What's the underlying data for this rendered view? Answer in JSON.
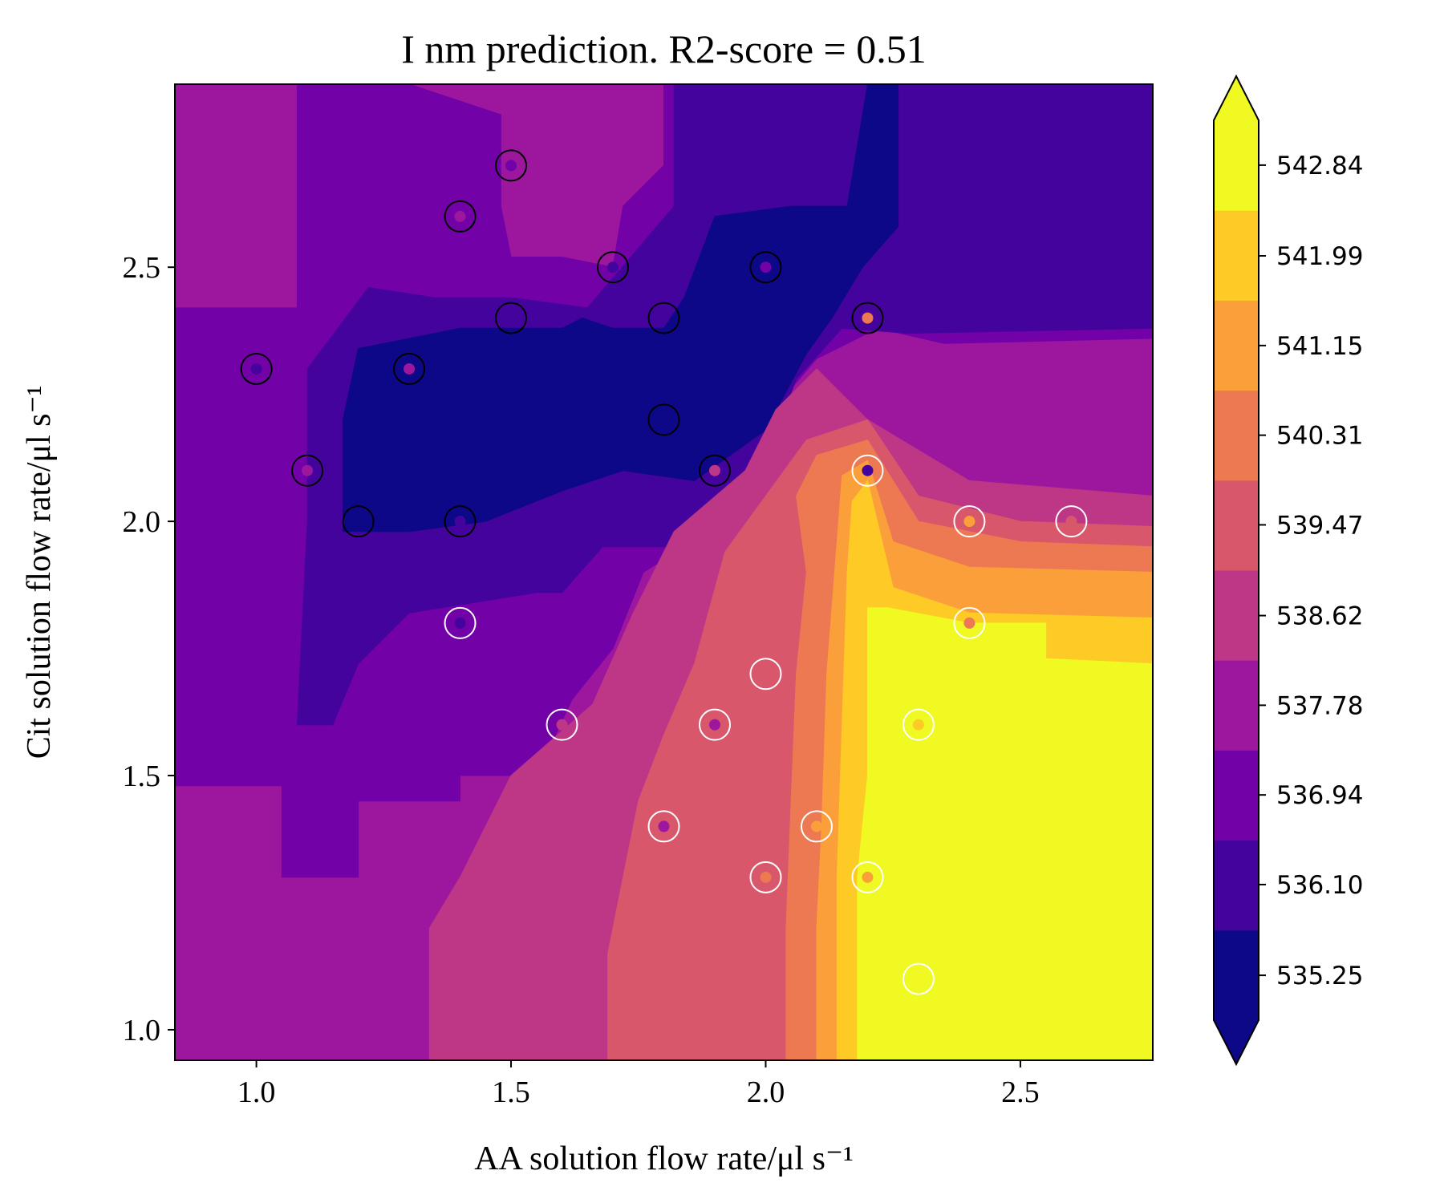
{
  "chart_data": {
    "type": "heatmap",
    "subtype": "filled-contour with scatter overlay and colorbar",
    "title": "I nm prediction. R2-score = 0.51",
    "xlabel": "AA solution flow rate/μl s⁻¹",
    "ylabel": "Cit solution flow rate/μl s⁻¹",
    "xlim": [
      0.84,
      2.76
    ],
    "ylim": [
      0.94,
      2.86
    ],
    "x_ticks": [
      1.0,
      1.5,
      2.0,
      2.5
    ],
    "x_tick_labels": [
      "1.0",
      "1.5",
      "2.0",
      "2.5"
    ],
    "y_ticks": [
      1.0,
      1.5,
      2.0,
      2.5
    ],
    "y_tick_labels": [
      "1.0",
      "1.5",
      "2.0",
      "2.5"
    ],
    "grid": false,
    "colormap": "plasma",
    "colorbar": {
      "levels": [
        534.83,
        535.67,
        536.52,
        537.36,
        538.2,
        539.04,
        539.89,
        540.73,
        541.57,
        542.41,
        543.26
      ],
      "tick_values": [
        535.25,
        536.1,
        536.94,
        537.78,
        538.62,
        539.47,
        540.31,
        541.15,
        541.99,
        542.84
      ],
      "tick_labels": [
        "535.25",
        "536.10",
        "536.94",
        "537.78",
        "538.62",
        "539.47",
        "540.31",
        "541.15",
        "541.99",
        "542.84"
      ],
      "band_colors": [
        "#0d0887",
        "#45039e",
        "#7201a8",
        "#9c179e",
        "#bd3786",
        "#d8576b",
        "#ed7953",
        "#fb9f3a",
        "#fdca26",
        "#f0f921"
      ],
      "extend": "both"
    },
    "contour_regions": [
      {
        "level": 3,
        "color": "#9c179e",
        "polygon": [
          [
            0.84,
            0.94
          ],
          [
            2.76,
            0.94
          ],
          [
            2.76,
            2.86
          ],
          [
            0.84,
            2.86
          ]
        ]
      },
      {
        "level": 2,
        "color": "#7201a8",
        "polygon": [
          [
            0.84,
            1.48
          ],
          [
            1.05,
            1.48
          ],
          [
            1.05,
            1.3
          ],
          [
            1.2,
            1.3
          ],
          [
            1.2,
            1.45
          ],
          [
            1.4,
            1.45
          ],
          [
            1.4,
            1.5
          ],
          [
            1.55,
            1.5
          ],
          [
            1.62,
            1.65
          ],
          [
            1.7,
            1.75
          ],
          [
            1.76,
            1.9
          ],
          [
            1.92,
            2.0
          ],
          [
            2.04,
            2.25
          ],
          [
            2.1,
            2.32
          ],
          [
            2.22,
            2.38
          ],
          [
            2.35,
            2.35
          ],
          [
            2.76,
            2.36
          ],
          [
            2.76,
            2.86
          ],
          [
            2.2,
            2.86
          ],
          [
            1.8,
            2.86
          ],
          [
            1.8,
            2.7
          ],
          [
            1.72,
            2.62
          ],
          [
            1.7,
            2.5
          ],
          [
            1.6,
            2.52
          ],
          [
            1.5,
            2.52
          ],
          [
            1.48,
            2.62
          ],
          [
            1.48,
            2.8
          ],
          [
            1.3,
            2.86
          ],
          [
            1.08,
            2.86
          ],
          [
            1.08,
            2.42
          ],
          [
            0.84,
            2.42
          ]
        ]
      },
      {
        "level": 1,
        "color": "#45039e",
        "polygon": [
          [
            1.08,
            1.6
          ],
          [
            1.15,
            1.6
          ],
          [
            1.2,
            1.72
          ],
          [
            1.3,
            1.82
          ],
          [
            1.55,
            1.86
          ],
          [
            1.6,
            1.86
          ],
          [
            1.68,
            1.95
          ],
          [
            1.82,
            1.95
          ],
          [
            1.92,
            2.02
          ],
          [
            2.0,
            2.12
          ],
          [
            2.06,
            2.28
          ],
          [
            2.15,
            2.38
          ],
          [
            2.28,
            2.37
          ],
          [
            2.76,
            2.38
          ],
          [
            2.76,
            2.86
          ],
          [
            2.2,
            2.86
          ],
          [
            1.82,
            2.86
          ],
          [
            1.82,
            2.62
          ],
          [
            1.65,
            2.42
          ],
          [
            1.5,
            2.44
          ],
          [
            1.35,
            2.44
          ],
          [
            1.22,
            2.46
          ],
          [
            1.1,
            2.3
          ],
          [
            1.1,
            2.0
          ]
        ]
      },
      {
        "level": 0,
        "color": "#0d0887",
        "polygon": [
          [
            1.17,
            1.98
          ],
          [
            1.3,
            1.98
          ],
          [
            1.45,
            2.0
          ],
          [
            1.6,
            2.06
          ],
          [
            1.72,
            2.1
          ],
          [
            1.86,
            2.08
          ],
          [
            2.0,
            2.18
          ],
          [
            2.08,
            2.33
          ],
          [
            2.13,
            2.4
          ],
          [
            2.19,
            2.5
          ],
          [
            2.26,
            2.58
          ],
          [
            2.26,
            2.86
          ],
          [
            2.2,
            2.86
          ],
          [
            2.16,
            2.62
          ],
          [
            2.05,
            2.62
          ],
          [
            1.9,
            2.6
          ],
          [
            1.84,
            2.44
          ],
          [
            1.8,
            2.38
          ],
          [
            1.7,
            2.38
          ],
          [
            1.64,
            2.4
          ],
          [
            1.6,
            2.38
          ],
          [
            1.4,
            2.38
          ],
          [
            1.2,
            2.34
          ],
          [
            1.17,
            2.2
          ]
        ]
      },
      {
        "level": 4,
        "color": "#bd3786",
        "polygon": [
          [
            1.34,
            0.94
          ],
          [
            2.76,
            0.94
          ],
          [
            2.76,
            2.05
          ],
          [
            2.4,
            2.08
          ],
          [
            2.2,
            2.2
          ],
          [
            2.1,
            2.3
          ],
          [
            2.02,
            2.22
          ],
          [
            1.96,
            2.1
          ],
          [
            1.82,
            1.98
          ],
          [
            1.74,
            1.82
          ],
          [
            1.66,
            1.64
          ],
          [
            1.5,
            1.5
          ],
          [
            1.4,
            1.3
          ],
          [
            1.34,
            1.2
          ]
        ]
      },
      {
        "level": 5,
        "color": "#d8576b",
        "polygon": [
          [
            1.69,
            0.94
          ],
          [
            2.76,
            0.94
          ],
          [
            2.76,
            1.99
          ],
          [
            2.5,
            2.0
          ],
          [
            2.3,
            2.05
          ],
          [
            2.2,
            2.2
          ],
          [
            2.08,
            2.16
          ],
          [
            2.0,
            2.05
          ],
          [
            1.92,
            1.94
          ],
          [
            1.86,
            1.72
          ],
          [
            1.8,
            1.58
          ],
          [
            1.75,
            1.45
          ],
          [
            1.72,
            1.3
          ],
          [
            1.69,
            1.15
          ]
        ]
      },
      {
        "level": 6,
        "color": "#ed7953",
        "polygon": [
          [
            2.04,
            0.94
          ],
          [
            2.76,
            0.94
          ],
          [
            2.76,
            1.95
          ],
          [
            2.5,
            1.96
          ],
          [
            2.3,
            2.0
          ],
          [
            2.2,
            2.16
          ],
          [
            2.1,
            2.13
          ],
          [
            2.06,
            2.05
          ],
          [
            2.08,
            1.9
          ],
          [
            2.06,
            1.7
          ],
          [
            2.05,
            1.45
          ],
          [
            2.04,
            1.2
          ]
        ]
      },
      {
        "level": 7,
        "color": "#fb9f3a",
        "polygon": [
          [
            2.1,
            0.94
          ],
          [
            2.76,
            0.94
          ],
          [
            2.76,
            1.9
          ],
          [
            2.4,
            1.91
          ],
          [
            2.25,
            1.96
          ],
          [
            2.2,
            2.12
          ],
          [
            2.15,
            2.09
          ],
          [
            2.14,
            1.96
          ],
          [
            2.12,
            1.7
          ],
          [
            2.11,
            1.4
          ],
          [
            2.1,
            1.2
          ]
        ]
      },
      {
        "level": 8,
        "color": "#fdca26",
        "polygon": [
          [
            2.14,
            0.94
          ],
          [
            2.76,
            0.94
          ],
          [
            2.76,
            1.81
          ],
          [
            2.4,
            1.82
          ],
          [
            2.25,
            1.87
          ],
          [
            2.2,
            2.08
          ],
          [
            2.17,
            2.04
          ],
          [
            2.16,
            1.9
          ],
          [
            2.15,
            1.6
          ],
          [
            2.14,
            1.3
          ]
        ]
      },
      {
        "level": 9,
        "color": "#f0f921",
        "polygon": [
          [
            2.18,
            0.94
          ],
          [
            2.76,
            0.94
          ],
          [
            2.76,
            1.72
          ],
          [
            2.55,
            1.73
          ],
          [
            2.55,
            1.8
          ],
          [
            2.4,
            1.8
          ],
          [
            2.24,
            1.83
          ],
          [
            2.2,
            1.83
          ],
          [
            2.2,
            1.5
          ],
          [
            2.18,
            1.3
          ]
        ]
      }
    ],
    "scatter_points": [
      {
        "x": 1.5,
        "y": 2.7,
        "value_color": "#7201a8",
        "ring": "black"
      },
      {
        "x": 1.4,
        "y": 2.6,
        "value_color": "#9c179e",
        "ring": "black"
      },
      {
        "x": 1.7,
        "y": 2.5,
        "value_color": "#45039e",
        "ring": "black"
      },
      {
        "x": 2.0,
        "y": 2.5,
        "value_color": "#7201a8",
        "ring": "black"
      },
      {
        "x": 1.5,
        "y": 2.4,
        "value_color": "#45039e",
        "ring": "black"
      },
      {
        "x": 1.8,
        "y": 2.4,
        "value_color": "#45039e",
        "ring": "black"
      },
      {
        "x": 2.2,
        "y": 2.4,
        "value_color": "#ed7953",
        "ring": "black"
      },
      {
        "x": 1.0,
        "y": 2.3,
        "value_color": "#45039e",
        "ring": "black"
      },
      {
        "x": 1.3,
        "y": 2.3,
        "value_color": "#9c179e",
        "ring": "black"
      },
      {
        "x": 1.8,
        "y": 2.2,
        "value_color": "#0d0887",
        "ring": "black"
      },
      {
        "x": 1.1,
        "y": 2.1,
        "value_color": "#9c179e",
        "ring": "black"
      },
      {
        "x": 1.9,
        "y": 2.1,
        "value_color": "#bd3786",
        "ring": "black"
      },
      {
        "x": 2.2,
        "y": 2.1,
        "value_color": "#45039e",
        "ring": "white"
      },
      {
        "x": 1.2,
        "y": 2.0,
        "value_color": "#0d0887",
        "ring": "black"
      },
      {
        "x": 1.4,
        "y": 2.0,
        "value_color": "#45039e",
        "ring": "black"
      },
      {
        "x": 2.4,
        "y": 2.0,
        "value_color": "#fb9f3a",
        "ring": "white"
      },
      {
        "x": 2.6,
        "y": 2.0,
        "value_color": "#d8576b",
        "ring": "white"
      },
      {
        "x": 1.4,
        "y": 1.8,
        "value_color": "#45039e",
        "ring": "white"
      },
      {
        "x": 2.4,
        "y": 1.8,
        "value_color": "#ed7953",
        "ring": "white"
      },
      {
        "x": 2.0,
        "y": 1.7,
        "value_color": "#d8576b",
        "ring": "white"
      },
      {
        "x": 1.6,
        "y": 1.6,
        "value_color": "#bd3786",
        "ring": "white"
      },
      {
        "x": 1.9,
        "y": 1.6,
        "value_color": "#9c179e",
        "ring": "white"
      },
      {
        "x": 2.3,
        "y": 1.6,
        "value_color": "#fdca26",
        "ring": "white"
      },
      {
        "x": 1.8,
        "y": 1.4,
        "value_color": "#9c179e",
        "ring": "white"
      },
      {
        "x": 2.1,
        "y": 1.4,
        "value_color": "#fb9f3a",
        "ring": "white"
      },
      {
        "x": 2.0,
        "y": 1.3,
        "value_color": "#ed7953",
        "ring": "white"
      },
      {
        "x": 2.2,
        "y": 1.3,
        "value_color": "#fb9f3a",
        "ring": "white"
      },
      {
        "x": 2.3,
        "y": 1.1,
        "value_color": "#f0f921",
        "ring": "white"
      }
    ]
  }
}
